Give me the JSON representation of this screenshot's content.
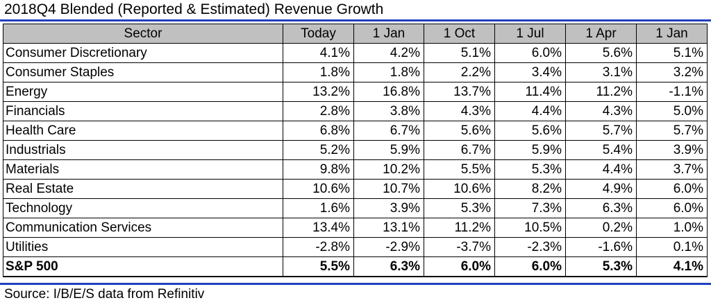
{
  "title": "2018Q4 Blended (Reported & Estimated) Revenue Growth",
  "source": "Source: I/B/E/S data from Refinitiv",
  "colors": {
    "rule": "#1f3fbf",
    "header_background": "#c0c0c0"
  },
  "chart_data": {
    "type": "table",
    "title": "2018Q4 Blended (Reported & Estimated) Revenue Growth",
    "columns": [
      "Sector",
      "Today",
      "1 Jan",
      "1 Oct",
      "1 Jul",
      "1 Apr",
      "1 Jan"
    ],
    "rows": [
      {
        "sector": "Consumer Discretionary",
        "values": [
          "4.1%",
          "4.2%",
          "5.1%",
          "6.0%",
          "5.6%",
          "5.1%"
        ]
      },
      {
        "sector": "Consumer Staples",
        "values": [
          "1.8%",
          "1.8%",
          "2.2%",
          "3.4%",
          "3.1%",
          "3.2%"
        ]
      },
      {
        "sector": "Energy",
        "values": [
          "13.2%",
          "16.8%",
          "13.7%",
          "11.4%",
          "11.2%",
          "-1.1%"
        ]
      },
      {
        "sector": "Financials",
        "values": [
          "2.8%",
          "3.8%",
          "4.3%",
          "4.4%",
          "4.3%",
          "5.0%"
        ]
      },
      {
        "sector": "Health Care",
        "values": [
          "6.8%",
          "6.7%",
          "5.6%",
          "5.6%",
          "5.7%",
          "5.7%"
        ]
      },
      {
        "sector": "Industrials",
        "values": [
          "5.2%",
          "5.9%",
          "6.7%",
          "5.9%",
          "5.4%",
          "3.9%"
        ]
      },
      {
        "sector": "Materials",
        "values": [
          "9.8%",
          "10.2%",
          "5.5%",
          "5.3%",
          "4.4%",
          "3.7%"
        ]
      },
      {
        "sector": "Real Estate",
        "values": [
          "10.6%",
          "10.7%",
          "10.6%",
          "8.2%",
          "4.9%",
          "6.0%"
        ]
      },
      {
        "sector": "Technology",
        "values": [
          "1.6%",
          "3.9%",
          "5.3%",
          "7.3%",
          "6.3%",
          "6.0%"
        ]
      },
      {
        "sector": "Communication Services",
        "values": [
          "13.4%",
          "13.1%",
          "11.2%",
          "10.5%",
          "0.2%",
          "1.0%"
        ]
      },
      {
        "sector": "Utilities",
        "values": [
          "-2.8%",
          "-2.9%",
          "-3.7%",
          "-2.3%",
          "-1.6%",
          "0.1%"
        ]
      },
      {
        "sector": "S&P 500",
        "values": [
          "5.5%",
          "6.3%",
          "6.0%",
          "6.0%",
          "5.3%",
          "4.1%"
        ],
        "total": true
      }
    ]
  }
}
